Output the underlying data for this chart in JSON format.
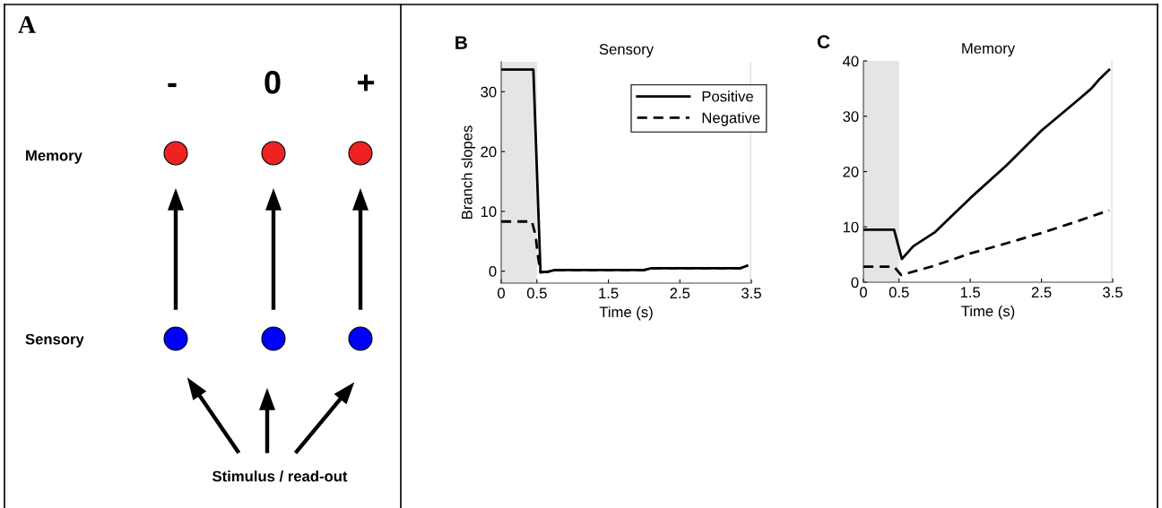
{
  "chart_data": [
    {
      "type": "other",
      "annotations": [
        "A",
        "-",
        "0",
        "+",
        "Memory",
        "Sensory",
        "Stimulus / read-out"
      ]
    },
    {
      "type": "line",
      "title": "Sensory",
      "xlabel": "Time (s)",
      "ylabel": "Branch slopes",
      "annotations": [
        "B"
      ],
      "xlim": [
        0,
        3.5
      ],
      "ylim": [
        -2,
        35
      ],
      "xticks": [
        0,
        0.5,
        1.5,
        2.5,
        3.5
      ],
      "yticks": [
        0,
        10,
        20,
        30
      ],
      "legend": "top right",
      "grid": false,
      "bands": [
        {
          "axis": "x",
          "from": 0,
          "to": 0.5,
          "color": "#e5e5e5"
        }
      ],
      "ref_lines": [
        {
          "axis": "x",
          "value": 3.5,
          "color": "#e5e5e5"
        }
      ],
      "series": [
        {
          "name": "Positive",
          "color": "#000000",
          "line_style": "solid",
          "x": [
            0,
            0.45,
            0.55,
            0.65,
            0.75,
            2.0,
            2.1,
            3.35,
            3.44
          ],
          "values": [
            33.7,
            33.7,
            -0.2,
            -0.1,
            0.2,
            0.2,
            0.5,
            0.5,
            0.9
          ]
        },
        {
          "name": "Negative",
          "color": "#000000",
          "line_style": "dashed",
          "x": [
            0,
            0.43,
            0.48,
            0.52,
            0.55,
            0.65,
            0.75,
            2.0,
            2.1,
            3.35,
            3.44
          ],
          "values": [
            8.3,
            8.3,
            6,
            2,
            -0.2,
            -0.1,
            0.2,
            0.2,
            0.5,
            0.5,
            0.9
          ]
        }
      ]
    },
    {
      "type": "line",
      "title": "Memory",
      "xlabel": "Time (s)",
      "annotations": [
        "C"
      ],
      "xlim": [
        0,
        3.5
      ],
      "ylim": [
        0,
        40
      ],
      "xticks": [
        0,
        0.5,
        1.5,
        2.5,
        3.5
      ],
      "yticks": [
        0,
        10,
        20,
        30,
        40
      ],
      "grid": false,
      "bands": [
        {
          "axis": "x",
          "from": 0,
          "to": 0.5,
          "color": "#e5e5e5"
        }
      ],
      "ref_lines": [
        {
          "axis": "x",
          "value": 3.5,
          "color": "#e5e5e5"
        }
      ],
      "series": [
        {
          "color": "#000000",
          "line_style": "solid",
          "x": [
            0,
            0.43,
            0.54,
            0.7,
            1.0,
            1.5,
            2.0,
            2.5,
            3.0,
            3.2,
            3.3,
            3.45
          ],
          "values": [
            9.5,
            9.5,
            4.2,
            6.5,
            9,
            15.2,
            21,
            27.4,
            32.8,
            35,
            36.5,
            38.4
          ]
        },
        {
          "color": "#000000",
          "line_style": "dashed",
          "x": [
            0,
            0.43,
            0.53,
            1.0,
            1.5,
            2.0,
            2.5,
            3.0,
            3.45
          ],
          "values": [
            2.8,
            2.8,
            1.3,
            3,
            5.2,
            7,
            8.9,
            11,
            13
          ]
        }
      ]
    }
  ]
}
